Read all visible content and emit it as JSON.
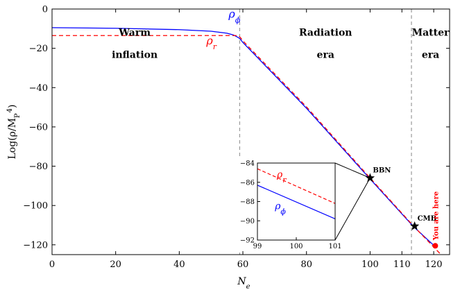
{
  "chart_data": {
    "type": "line",
    "xlabel": "N_e",
    "ylabel": "Log(ρ/M_P^4)",
    "xlim": [
      0,
      125
    ],
    "ylim": [
      -125,
      0
    ],
    "xticks": [
      0,
      20,
      40,
      60,
      80,
      100,
      110,
      120
    ],
    "yticks": [
      0,
      -20,
      -40,
      -60,
      -80,
      -100,
      -120
    ],
    "grid": false,
    "series": [
      {
        "name": "ρ_φ",
        "color": "#0000ff",
        "style": "solid",
        "x": [
          0,
          20,
          40,
          50,
          55,
          57,
          58,
          59,
          60,
          80,
          100,
          113.5,
          120.5
        ],
        "y": [
          -9.5,
          -9.8,
          -10.5,
          -11.3,
          -12.3,
          -13.2,
          -14,
          -15,
          -17,
          -50.5,
          -86.5,
          -110.5,
          -121
        ]
      },
      {
        "name": "ρ_r",
        "color": "#ff0000",
        "style": "dashed",
        "x": [
          0,
          58.5,
          59.2,
          60,
          80,
          100,
          113.5,
          122
        ],
        "y": [
          -13.5,
          -13.5,
          -14.5,
          -16.2,
          -49.8,
          -86,
          -110.2,
          -124.5
        ]
      }
    ],
    "vlines": [
      {
        "x": 59,
        "color": "#999999",
        "style": "dashed"
      },
      {
        "x": 113,
        "color": "#999999",
        "style": "dashed"
      }
    ],
    "era_labels": [
      {
        "line1": "Warm",
        "line2": "inflation",
        "x": 26,
        "y": -15,
        "y2": -22
      },
      {
        "line1": "Radiation",
        "line2": "era",
        "x": 86,
        "y": -15,
        "y2": -22
      },
      {
        "line1": "Matter",
        "line2": "era",
        "x": 119,
        "y": -15,
        "y2": -22
      }
    ],
    "series_labels": [
      {
        "series": 0,
        "text": "ρ",
        "sub": "ϕ",
        "x": 55.5,
        "y": -4.5
      },
      {
        "series": 1,
        "text": "ρ",
        "sub": "r",
        "x": 48.5,
        "y": -18
      }
    ],
    "markers": [
      {
        "label": "BBN",
        "x": 100,
        "y": -86,
        "shape": "star",
        "color": "#000000"
      },
      {
        "label": "CMB",
        "x": 114,
        "y": -110.5,
        "shape": "star",
        "color": "#000000"
      },
      {
        "label": "You are here",
        "x": 120.5,
        "y": -120.5,
        "shape": "circle",
        "color": "#ff0000",
        "rotated": true
      }
    ],
    "inset": {
      "xlim": [
        99,
        101
      ],
      "ylim": [
        -92,
        -84
      ],
      "xticks": [
        99,
        100,
        101
      ],
      "yticks": [
        -84,
        -86,
        -88,
        -90,
        -92
      ],
      "series": [
        {
          "name": "ρ_φ",
          "color": "#0000ff",
          "style": "solid",
          "x": [
            99,
            101
          ],
          "y": [
            -86.3,
            -89.8
          ]
        },
        {
          "name": "ρ_r",
          "color": "#ff0000",
          "style": "dashed",
          "x": [
            99,
            101
          ],
          "y": [
            -84.6,
            -88.2
          ]
        }
      ],
      "labels": [
        {
          "text": "ρ",
          "sub": "r",
          "color": "#ff0000",
          "x": 99.5,
          "y": -85.5
        },
        {
          "text": "ρ",
          "sub": "ϕ",
          "color": "#0000ff",
          "x": 99.45,
          "y": -88.8
        }
      ]
    }
  }
}
